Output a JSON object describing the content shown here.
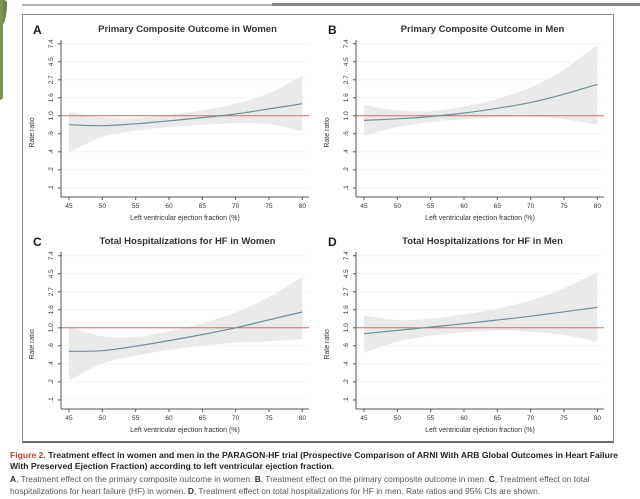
{
  "figure": {
    "style": {
      "curve_color": "#6b9097",
      "band_color": "#e9e8e8",
      "reference_color": "#c4716e",
      "grid_color": "#f4f0f0",
      "axis_color": "#555555",
      "tick_text_color": "#333333"
    },
    "axes": {
      "xlabel": "Left ventricular ejection fraction (%)",
      "ylabel": "Rate ratio",
      "xticks": [
        45,
        50,
        55,
        60,
        65,
        70,
        75,
        80
      ],
      "ytick_labels": [
        ".1",
        ".2",
        ".4",
        ".6",
        "1.0",
        "1.6",
        "2.7",
        "4.5",
        "7.4"
      ],
      "ytick_values": [
        0.135,
        0.223,
        0.368,
        0.607,
        1.0,
        1.649,
        2.718,
        4.482,
        7.389
      ],
      "yscale": "log",
      "x_domain": [
        43.8,
        81
      ],
      "y_domain_ln": [
        -2.254,
        2.104
      ]
    },
    "panels": [
      {
        "letter": "A",
        "title": "Primary Composite Outcome in Women"
      },
      {
        "letter": "B",
        "title": "Primary Composite Outcome in Men"
      },
      {
        "letter": "C",
        "title": "Total Hospitalizations for HF in Women"
      },
      {
        "letter": "D",
        "title": "Total Hospitalizations for HF in Men"
      }
    ]
  },
  "chart_data": [
    {
      "type": "line",
      "title": "Primary Composite Outcome in Women",
      "xlabel": "Left ventricular ejection fraction (%)",
      "ylabel": "Rate ratio",
      "reference_line": 1.0,
      "x": [
        45,
        50,
        55,
        60,
        65,
        70,
        75,
        80
      ],
      "estimate": [
        0.78,
        0.76,
        0.8,
        0.87,
        0.95,
        1.05,
        1.21,
        1.4
      ],
      "ci_lower": [
        0.36,
        0.56,
        0.66,
        0.73,
        0.78,
        0.81,
        0.79,
        0.66
      ],
      "ci_upper": [
        1.1,
        0.96,
        0.94,
        1.03,
        1.17,
        1.4,
        1.87,
        3.05
      ]
    },
    {
      "type": "line",
      "title": "Primary Composite Outcome in Men",
      "xlabel": "Left ventricular ejection fraction (%)",
      "ylabel": "Rate ratio",
      "reference_line": 1.0,
      "x": [
        45,
        50,
        55,
        60,
        65,
        70,
        75,
        80
      ],
      "estimate": [
        0.88,
        0.92,
        0.98,
        1.08,
        1.23,
        1.45,
        1.82,
        2.4
      ],
      "ci_lower": [
        0.57,
        0.73,
        0.84,
        0.91,
        0.96,
        0.97,
        0.91,
        0.78
      ],
      "ci_upper": [
        1.35,
        1.16,
        1.14,
        1.29,
        1.6,
        2.2,
        3.6,
        7.2
      ]
    },
    {
      "type": "line",
      "title": "Total Hospitalizations for HF in Women",
      "xlabel": "Left ventricular ejection fraction (%)",
      "ylabel": "Rate ratio",
      "reference_line": 1.0,
      "x": [
        45,
        50,
        55,
        60,
        65,
        70,
        75,
        80
      ],
      "estimate": [
        0.52,
        0.53,
        0.6,
        0.7,
        0.83,
        1.0,
        1.25,
        1.55
      ],
      "ci_lower": [
        0.23,
        0.37,
        0.46,
        0.54,
        0.61,
        0.66,
        0.69,
        0.73
      ],
      "ci_upper": [
        1.03,
        0.79,
        0.78,
        0.91,
        1.13,
        1.53,
        2.35,
        4.1
      ]
    },
    {
      "type": "line",
      "title": "Total Hospitalizations for HF in Men",
      "xlabel": "Left ventricular ejection fraction (%)",
      "ylabel": "Rate ratio",
      "reference_line": 1.0,
      "x": [
        45,
        50,
        55,
        60,
        65,
        70,
        75,
        80
      ],
      "estimate": [
        0.85,
        0.93,
        1.02,
        1.12,
        1.24,
        1.38,
        1.56,
        1.76
      ],
      "ci_lower": [
        0.5,
        0.68,
        0.8,
        0.88,
        0.92,
        0.9,
        0.82,
        0.68
      ],
      "ci_upper": [
        1.4,
        1.24,
        1.28,
        1.45,
        1.7,
        2.15,
        3.0,
        4.7
      ]
    }
  ],
  "caption": {
    "label": "Figure 2.",
    "bold_text": "Treatment effect in women and men in the PARAGON-HF trial (Prospective Comparison of ARNI With ARB Global Outcomes in Heart Failure With Preserved Ejection Fraction) according to left ventricular ejection fraction.",
    "details": [
      {
        "label": "A",
        "text": ", Treatment effect on the primary composite outcome in women. "
      },
      {
        "label": "B",
        "text": ", Treatment effect on the primary composite outcome in men. "
      },
      {
        "label": "C",
        "text": ", Treatment effect on total hospitalizations for heart failure (HF) in women. "
      },
      {
        "label": "D",
        "text": ", Treatment effect on total hospitalizations for HF in men. "
      }
    ],
    "tail": "Rate ratios and 95% CIs are shown."
  }
}
